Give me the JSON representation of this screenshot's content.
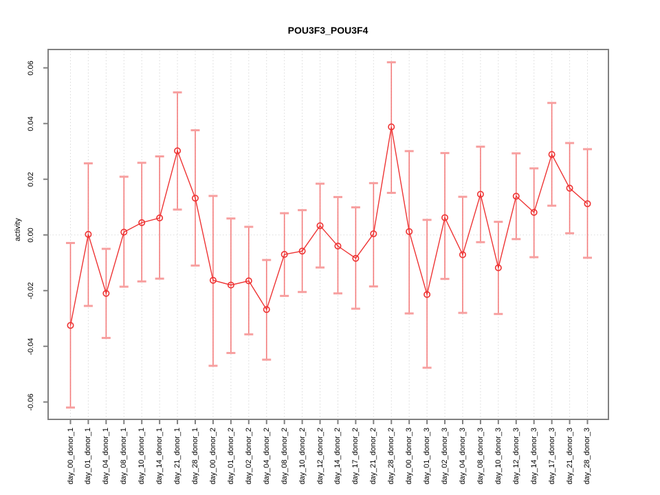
{
  "chart_data": {
    "type": "line",
    "title": "POU3F3_POU3F4",
    "xlabel": "",
    "ylabel": "activity",
    "ylim": [
      -0.065,
      0.065
    ],
    "yticks": [
      0.06,
      0.04,
      0.02,
      0.0,
      -0.02,
      -0.04,
      -0.06
    ],
    "ytick_labels": [
      "0.06",
      "0.04",
      "0.02",
      "0.00",
      "-0.02",
      "-0.04",
      "-0.06"
    ],
    "grid": "vertical dotted gridline per category plus dotted zero line",
    "legend": "none",
    "categories": [
      "day_00_donor_1",
      "day_01_donor_1",
      "day_04_donor_1",
      "day_08_donor_1",
      "day_10_donor_1",
      "day_14_donor_1",
      "day_21_donor_1",
      "day_28_donor_1",
      "day_00_donor_2",
      "day_01_donor_2",
      "day_02_donor_2",
      "day_04_donor_2",
      "day_08_donor_2",
      "day_10_donor_2",
      "day_12_donor_2",
      "day_14_donor_2",
      "day_17_donor_2",
      "day_21_donor_2",
      "day_28_donor_2",
      "day_00_donor_3",
      "day_01_donor_3",
      "day_02_donor_3",
      "day_04_donor_3",
      "day_08_donor_3",
      "day_10_donor_3",
      "day_12_donor_3",
      "day_14_donor_3",
      "day_17_donor_3",
      "day_21_donor_3",
      "day_28_donor_3"
    ],
    "series": [
      {
        "name": "activity",
        "values": [
          -0.0325,
          0.0002,
          -0.021,
          0.001,
          0.0044,
          0.0061,
          0.0302,
          0.0132,
          -0.0163,
          -0.018,
          -0.0165,
          -0.0268,
          -0.007,
          -0.0058,
          0.0033,
          -0.004,
          -0.0084,
          0.0004,
          0.0388,
          0.0012,
          -0.0214,
          0.0062,
          -0.0071,
          0.0146,
          -0.0118,
          0.0139,
          0.0081,
          0.0289,
          0.0168,
          0.0112
        ],
        "error_low": [
          -0.062,
          -0.0255,
          -0.037,
          -0.0186,
          -0.0167,
          -0.0157,
          0.0091,
          -0.011,
          -0.047,
          -0.0424,
          -0.0357,
          -0.0448,
          -0.0219,
          -0.0205,
          -0.0117,
          -0.021,
          -0.0265,
          -0.0185,
          0.0151,
          -0.0282,
          -0.0477,
          -0.0158,
          -0.028,
          -0.0026,
          -0.0284,
          -0.0015,
          -0.008,
          0.0105,
          0.0006,
          -0.0082
        ],
        "error_high": [
          -0.0029,
          0.0257,
          -0.005,
          0.0209,
          0.0259,
          0.0282,
          0.0512,
          0.0376,
          0.014,
          0.0059,
          0.0029,
          -0.009,
          0.0078,
          0.0089,
          0.0184,
          0.0136,
          0.0099,
          0.0186,
          0.062,
          0.0301,
          0.0054,
          0.0294,
          0.0137,
          0.0317,
          0.0047,
          0.0293,
          0.0239,
          0.0474,
          0.033,
          0.0308
        ]
      }
    ],
    "colors": {
      "series_line": "#ee3333",
      "point_stroke": "#ee3333",
      "errorbar_stem": "#f26666",
      "errorbar_cap": "#f79f9f",
      "grid": "#d9d9d9",
      "axis": "#808080",
      "text": "#000000"
    }
  }
}
